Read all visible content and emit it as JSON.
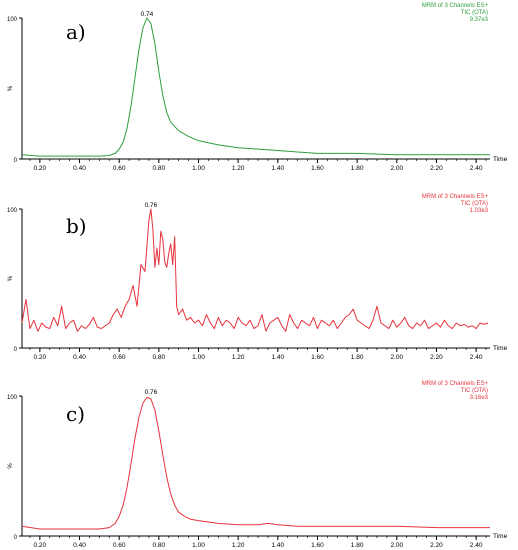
{
  "chart_data": [
    {
      "type": "line",
      "panel_label": "a)",
      "color": "#2e9e3e",
      "header": [
        "MRM of 3 Channels ES+",
        "TIC (OTA)",
        "9.37e3"
      ],
      "peak_label": "0.74",
      "peak_x": 0.74,
      "ylabel": "%",
      "xlabel": "Time",
      "y_ticks": [
        "100",
        "0"
      ],
      "ylim": [
        0,
        100
      ],
      "xlim": [
        0.11,
        2.47
      ],
      "x_ticks": [
        "0.20",
        "0.40",
        "0.60",
        "0.80",
        "1.00",
        "1.20",
        "1.40",
        "1.60",
        "1.80",
        "2.00",
        "2.20",
        "2.40"
      ],
      "x": [
        0.11,
        0.2,
        0.3,
        0.4,
        0.5,
        0.55,
        0.58,
        0.6,
        0.62,
        0.64,
        0.66,
        0.68,
        0.7,
        0.72,
        0.74,
        0.76,
        0.78,
        0.8,
        0.82,
        0.84,
        0.86,
        0.9,
        0.95,
        1.0,
        1.1,
        1.2,
        1.3,
        1.4,
        1.5,
        1.6,
        1.8,
        2.0,
        2.2,
        2.47
      ],
      "y": [
        3,
        2,
        2,
        2,
        2,
        2.5,
        4,
        7,
        12,
        22,
        38,
        58,
        78,
        93,
        100,
        96,
        82,
        62,
        45,
        33,
        26,
        20,
        16,
        13,
        10,
        8,
        7,
        6,
        5,
        4,
        4,
        3,
        3,
        3
      ]
    },
    {
      "type": "line",
      "panel_label": "b)",
      "color": "#e8323c",
      "header": [
        "MRM of 3 Channels ES+",
        "TIC (OTA)",
        "1.03e3"
      ],
      "peak_label": "0.76",
      "peak_x": 0.76,
      "ylabel": "%",
      "xlabel": "Time",
      "y_ticks": [
        "100",
        "0"
      ],
      "ylim": [
        0,
        100
      ],
      "xlim": [
        0.11,
        2.47
      ],
      "x_ticks": [
        "0.20",
        "0.40",
        "0.60",
        "0.80",
        "1.00",
        "1.20",
        "1.40",
        "1.60",
        "1.80",
        "2.00",
        "2.20",
        "2.40"
      ],
      "x": [
        0.11,
        0.13,
        0.15,
        0.17,
        0.19,
        0.21,
        0.23,
        0.25,
        0.27,
        0.29,
        0.31,
        0.33,
        0.35,
        0.37,
        0.39,
        0.41,
        0.43,
        0.45,
        0.47,
        0.49,
        0.51,
        0.53,
        0.55,
        0.57,
        0.59,
        0.61,
        0.63,
        0.65,
        0.67,
        0.69,
        0.71,
        0.73,
        0.75,
        0.76,
        0.77,
        0.78,
        0.79,
        0.8,
        0.81,
        0.82,
        0.83,
        0.84,
        0.85,
        0.86,
        0.87,
        0.88,
        0.89,
        0.9,
        0.92,
        0.94,
        0.96,
        0.98,
        1.0,
        1.02,
        1.04,
        1.06,
        1.08,
        1.1,
        1.12,
        1.14,
        1.16,
        1.18,
        1.2,
        1.22,
        1.24,
        1.26,
        1.28,
        1.3,
        1.32,
        1.34,
        1.36,
        1.38,
        1.4,
        1.42,
        1.44,
        1.46,
        1.48,
        1.5,
        1.52,
        1.54,
        1.56,
        1.58,
        1.6,
        1.62,
        1.64,
        1.66,
        1.68,
        1.7,
        1.72,
        1.74,
        1.76,
        1.78,
        1.8,
        1.82,
        1.84,
        1.86,
        1.88,
        1.9,
        1.92,
        1.94,
        1.96,
        1.98,
        2.0,
        2.02,
        2.04,
        2.06,
        2.08,
        2.1,
        2.12,
        2.14,
        2.16,
        2.18,
        2.2,
        2.22,
        2.24,
        2.26,
        2.28,
        2.3,
        2.32,
        2.34,
        2.36,
        2.38,
        2.4,
        2.42,
        2.44,
        2.46
      ],
      "y": [
        18,
        35,
        14,
        20,
        12,
        18,
        15,
        14,
        22,
        16,
        30,
        14,
        18,
        20,
        12,
        16,
        14,
        17,
        22,
        15,
        14,
        16,
        18,
        24,
        28,
        22,
        30,
        35,
        45,
        30,
        60,
        55,
        92,
        100,
        85,
        58,
        72,
        60,
        84,
        78,
        62,
        58,
        68,
        75,
        60,
        80,
        30,
        24,
        28,
        20,
        22,
        18,
        20,
        16,
        24,
        18,
        14,
        22,
        16,
        20,
        18,
        14,
        22,
        18,
        16,
        20,
        14,
        16,
        24,
        12,
        18,
        20,
        22,
        16,
        12,
        24,
        18,
        14,
        20,
        18,
        16,
        22,
        14,
        20,
        18,
        16,
        20,
        14,
        18,
        22,
        24,
        28,
        20,
        18,
        16,
        14,
        20,
        30,
        18,
        16,
        14,
        20,
        15,
        18,
        22,
        16,
        14,
        18,
        16,
        20,
        14,
        16,
        18,
        15,
        20,
        16,
        14,
        18,
        16,
        17,
        15,
        16,
        14,
        18,
        17,
        18
      ]
    },
    {
      "type": "line",
      "panel_label": "c)",
      "color": "#e8323c",
      "header": [
        "MRM of 3 Channels ES+",
        "TIC (OTA)",
        "3.16e3"
      ],
      "peak_label": "0.76",
      "peak_x": 0.76,
      "ylabel": "%",
      "xlabel": "Time",
      "y_ticks": [
        "100",
        "0"
      ],
      "ylim": [
        0,
        100
      ],
      "xlim": [
        0.11,
        2.47
      ],
      "x_ticks": [
        "0.20",
        "0.40",
        "0.60",
        "0.80",
        "1.00",
        "1.20",
        "1.40",
        "1.60",
        "1.80",
        "2.00",
        "2.20",
        "2.40"
      ],
      "x": [
        0.11,
        0.2,
        0.3,
        0.4,
        0.5,
        0.55,
        0.58,
        0.6,
        0.62,
        0.64,
        0.66,
        0.68,
        0.7,
        0.72,
        0.74,
        0.76,
        0.78,
        0.8,
        0.82,
        0.84,
        0.86,
        0.88,
        0.9,
        0.93,
        0.96,
        1.0,
        1.05,
        1.1,
        1.2,
        1.3,
        1.35,
        1.4,
        1.5,
        1.6,
        1.8,
        2.0,
        2.2,
        2.47
      ],
      "y": [
        7,
        5,
        5,
        5,
        5,
        6,
        9,
        14,
        22,
        35,
        52,
        70,
        85,
        95,
        99,
        98,
        90,
        75,
        58,
        42,
        30,
        22,
        17,
        14,
        12,
        11,
        10,
        9,
        8,
        8,
        9,
        8,
        7,
        7,
        7,
        7,
        6,
        6
      ]
    }
  ],
  "panels": [
    {
      "label": "a)"
    },
    {
      "label": "b)"
    },
    {
      "label": "c)"
    }
  ]
}
